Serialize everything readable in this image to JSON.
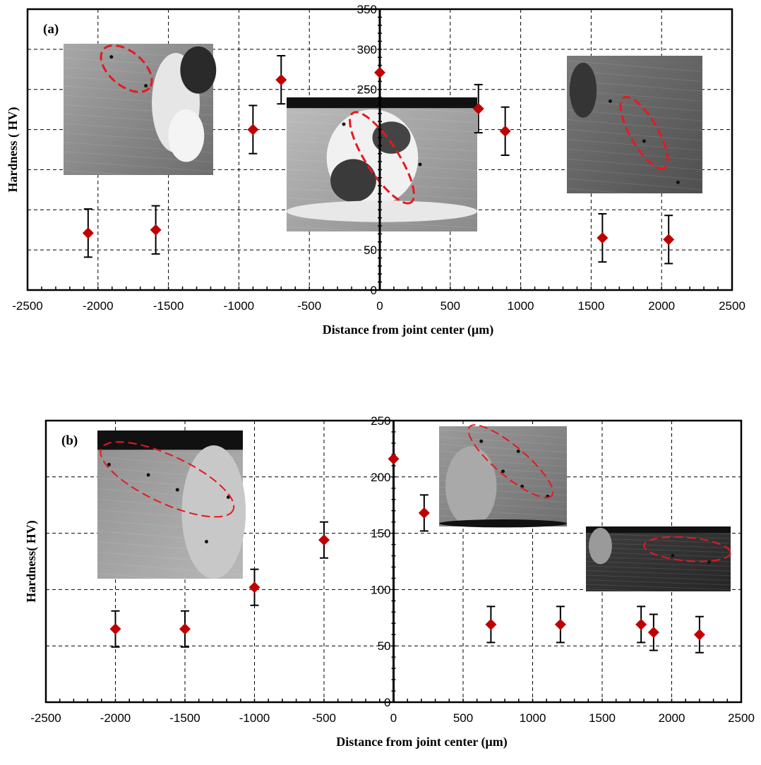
{
  "chart_data": [
    {
      "type": "scatter",
      "panel_label": "(a)",
      "xlabel": "Distance from joint center (μm)",
      "ylabel": "Hardness ( HV)",
      "xlim": [
        -2500,
        2500
      ],
      "ylim": [
        0,
        350
      ],
      "x_ticks": [
        -2500,
        -2000,
        -1500,
        -1000,
        -500,
        0,
        500,
        1000,
        1500,
        2000,
        2500
      ],
      "y_tick_labels": [
        "0",
        "50",
        "250",
        "300",
        "350"
      ],
      "grid": true,
      "marker": "diamond",
      "marker_color": "#c00000",
      "x": [
        -2070,
        -1590,
        -900,
        -700,
        0,
        700,
        890,
        1580,
        2050
      ],
      "y": [
        71,
        75,
        200,
        262,
        271,
        226,
        198,
        65,
        63
      ],
      "error": [
        30,
        30,
        30,
        30,
        0,
        30,
        30,
        30,
        30
      ],
      "insets": [
        "weld-micrograph-left",
        "weld-micrograph-center",
        "weld-micrograph-right"
      ]
    },
    {
      "type": "scatter",
      "panel_label": "(b)",
      "xlabel": "Distance from joint center (μm)",
      "ylabel": "Hardness( HV)",
      "xlim": [
        -2500,
        2500
      ],
      "ylim": [
        0,
        250
      ],
      "x_ticks": [
        -2500,
        -2000,
        -1500,
        -1000,
        -500,
        0,
        500,
        1000,
        1500,
        2000,
        2500
      ],
      "y_tick_labels": [
        "0",
        "50",
        "100",
        "150",
        "200",
        "250"
      ],
      "grid": true,
      "marker": "diamond",
      "marker_color": "#c00000",
      "x": [
        -2000,
        -1500,
        -1000,
        -500,
        0,
        220,
        700,
        1200,
        1780,
        1870,
        2200
      ],
      "y": [
        65,
        65,
        102,
        144,
        216,
        168,
        69,
        69,
        69,
        62,
        60
      ],
      "error": [
        16,
        16,
        16,
        16,
        0,
        16,
        16,
        16,
        16,
        16,
        16
      ],
      "insets": [
        "weld-micrograph-left",
        "weld-micrograph-top-right",
        "weld-micrograph-bottom-right"
      ]
    }
  ]
}
